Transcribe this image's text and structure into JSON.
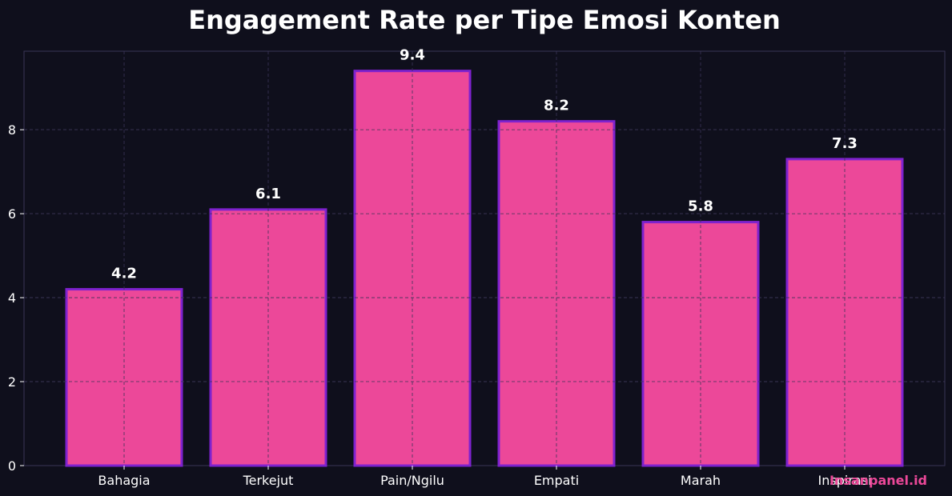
{
  "colors": {
    "background": "#0f0f1c",
    "bar_fill": "#ec4899",
    "bar_edge": "#7e22ce",
    "grid": "#4a4660",
    "text": "#ffffff",
    "watermark": "#ec4899"
  },
  "watermark": "Insanpanel.id",
  "chart_data": {
    "type": "bar",
    "title": "Engagement Rate per Tipe Emosi Konten",
    "xlabel": "",
    "ylabel": "",
    "categories": [
      "Bahagia",
      "Terkejut",
      "Pain/Ngilu",
      "Empati",
      "Marah",
      "Inspirasi"
    ],
    "values": [
      4.2,
      6.1,
      9.4,
      8.2,
      5.8,
      7.3
    ],
    "value_labels": [
      "4.2",
      "6.1",
      "9.4",
      "8.2",
      "5.8",
      "7.3"
    ],
    "ylim": [
      0,
      9.87
    ],
    "yticks": [
      0,
      2,
      4,
      6,
      8
    ],
    "ytick_labels": [
      "0",
      "2",
      "4",
      "6",
      "8"
    ],
    "grid": true,
    "legend": "none"
  }
}
